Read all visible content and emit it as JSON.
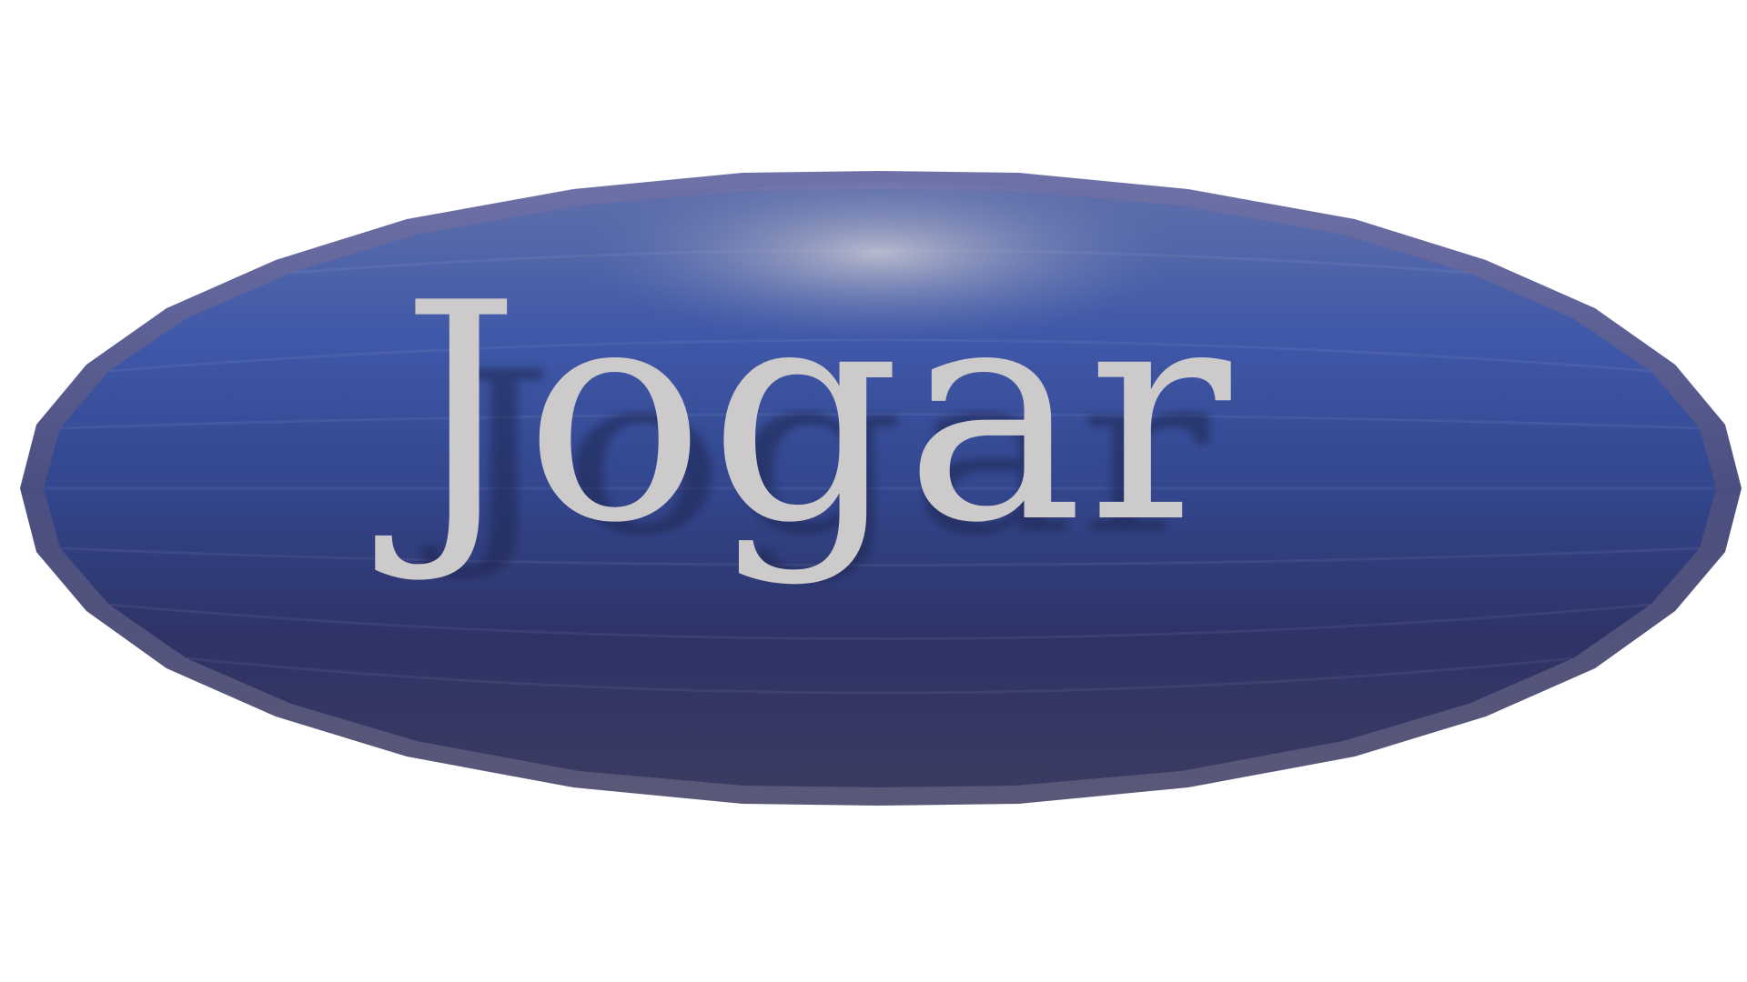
{
  "play_button": {
    "label": "Jogar",
    "colors": {
      "body_top": "#5b6fb3",
      "body_mid": "#34478f",
      "body_bottom": "#2c3060",
      "rim": "#56557a",
      "text": "#cdcacb",
      "text_shadow": "#1e2650",
      "highlight": "#c9c9d4"
    }
  }
}
